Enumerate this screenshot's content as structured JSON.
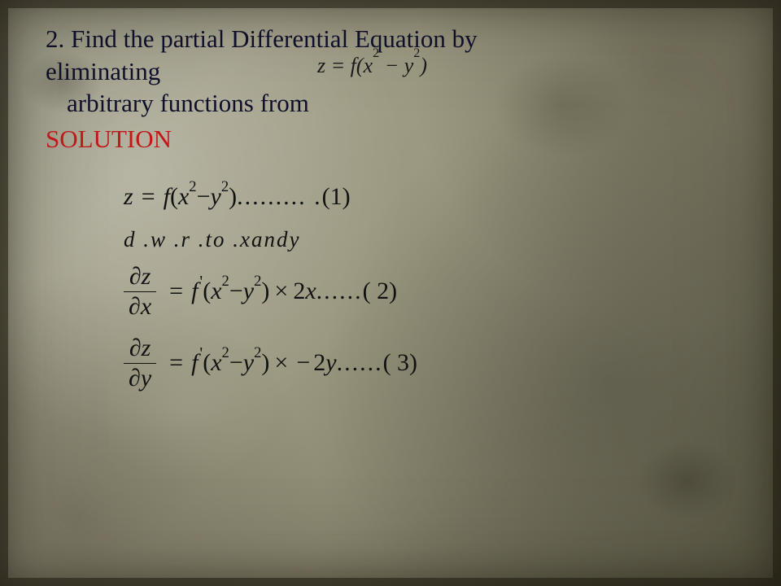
{
  "colors": {
    "question_text": "#0f0f2a",
    "solution_text": "#c01818",
    "math_text": "#111111",
    "bg_base": "#9a977f",
    "frame": "#2a2414"
  },
  "typography": {
    "body_font": "Georgia, serif",
    "math_font": "Times New Roman, serif",
    "question_fontsize_pt": 23,
    "math_fontsize_pt": 22
  },
  "question": {
    "line1": "2. Find the partial Differential Equation by",
    "line2": "eliminating",
    "line3": "arbitrary functions from",
    "inline_equation": {
      "lhs": "z",
      "equals": " = ",
      "fn": "f",
      "open": "(",
      "t1_base": "x",
      "t1_exp": "2",
      "minus": " − ",
      "t2_base": "y",
      "t2_exp": "2",
      "close": ")"
    }
  },
  "solution_label": "SOLUTION",
  "eq1": {
    "lhs": "z",
    "equals": " = ",
    "fn": "f",
    "open": "(",
    "t1_base": "x",
    "t1_exp": "2",
    "minus": " − ",
    "t2_base": "y",
    "t2_exp": "2",
    "close": ")",
    "dots": "......... .",
    "tag": "(1)"
  },
  "note": "d .w .r .to .xandy",
  "eq2": {
    "num_sym": "∂",
    "num_var": "z",
    "den_sym": "∂",
    "den_var": "x",
    "equals": " = ",
    "fn": "f",
    "prime": "'",
    "open": "(",
    "t1_base": "x",
    "t1_exp": "2",
    "minus": " − ",
    "t2_base": "y",
    "t2_exp": "2",
    "close": ")",
    "times": "×",
    "coef": "2",
    "var": "x",
    "dots": "......",
    "tag": "( 2)"
  },
  "eq3": {
    "num_sym": "∂",
    "num_var": "z",
    "den_sym": "∂",
    "den_var": "y",
    "equals": " = ",
    "fn": "f",
    "prime": "'",
    "open": "(",
    "t1_base": "x",
    "t1_exp": "2",
    "minus": " − ",
    "t2_base": "y",
    "t2_exp": "2",
    "close": ")",
    "times": "×",
    "neg": "−",
    "coef": "2",
    "var": "y",
    "dots": "......",
    "tag": "( 3)"
  }
}
